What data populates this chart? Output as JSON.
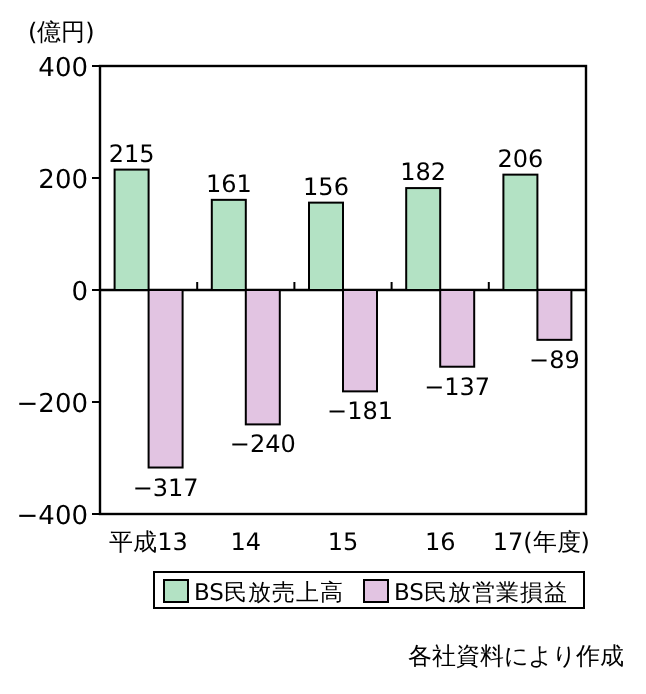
{
  "chart_data": {
    "type": "bar",
    "ylabel": "(億円)",
    "categories": [
      "平成13",
      "14",
      "15",
      "16",
      "17(年度)"
    ],
    "series": [
      {
        "name": "BS民放売上高",
        "color": "#b3e2c4",
        "values": [
          215,
          161,
          156,
          182,
          206
        ]
      },
      {
        "name": "BS民放営業損益",
        "color": "#e2c4e2",
        "values": [
          -317,
          -240,
          -181,
          -137,
          -89
        ]
      }
    ],
    "ylim": [
      -400,
      400
    ],
    "yticks": [
      400,
      200,
      0,
      {
        "value": -200,
        "label": "−200"
      },
      {
        "value": -400,
        "label": "−400"
      }
    ],
    "data_labels": true,
    "legend": "bottom",
    "ref_lines": [
      {
        "axis": "y",
        "value": 0,
        "color": "#000000"
      }
    ],
    "annotations": [
      "各社資料により作成"
    ]
  }
}
